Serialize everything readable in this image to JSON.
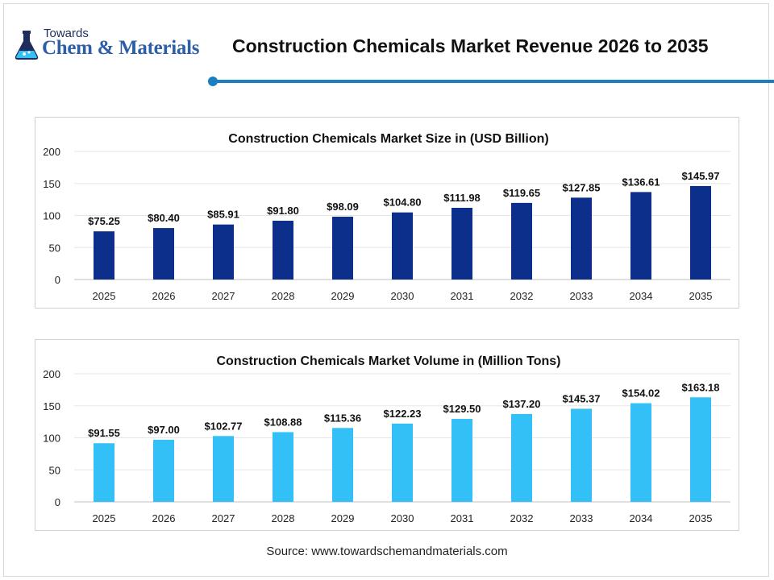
{
  "logo": {
    "top_text": "Towards",
    "brand_text": "Chem & Materials"
  },
  "page_title": "Construction Chemicals Market Revenue 2026 to 2035",
  "source": "Source: www.towardschemandmaterials.com",
  "colors": {
    "accent": "#1a7fc1",
    "bar_size": "#0b2f8a",
    "bar_volume": "#33c0f6"
  },
  "chart_data": [
    {
      "type": "bar",
      "title": "Construction Chemicals Market Size in (USD Billion)",
      "categories": [
        "2025",
        "2026",
        "2027",
        "2028",
        "2029",
        "2030",
        "2031",
        "2032",
        "2033",
        "2034",
        "2035"
      ],
      "values": [
        75.25,
        80.4,
        85.91,
        91.8,
        98.09,
        104.8,
        111.98,
        119.65,
        127.85,
        136.61,
        145.97
      ],
      "data_labels": [
        "$75.25",
        "$80.40",
        "$85.91",
        "$91.80",
        "$98.09",
        "$104.80",
        "$111.98",
        "$119.65",
        "$127.85",
        "$136.61",
        "$145.97"
      ],
      "ylim": [
        0,
        200
      ],
      "yticks": [
        "0",
        "50",
        "100",
        "150",
        "200"
      ],
      "grid": true,
      "color": "#0b2f8a"
    },
    {
      "type": "bar",
      "title": "Construction Chemicals Market Volume in (Million Tons)",
      "categories": [
        "2025",
        "2026",
        "2027",
        "2028",
        "2029",
        "2030",
        "2031",
        "2032",
        "2033",
        "2034",
        "2035"
      ],
      "values": [
        91.55,
        97.0,
        102.77,
        108.88,
        115.36,
        122.23,
        129.5,
        137.2,
        145.37,
        154.02,
        163.18
      ],
      "data_labels": [
        "$91.55",
        "$97.00",
        "$102.77",
        "$108.88",
        "$115.36",
        "$122.23",
        "$129.50",
        "$137.20",
        "$145.37",
        "$154.02",
        "$163.18"
      ],
      "ylim": [
        0,
        200
      ],
      "yticks": [
        "0",
        "50",
        "100",
        "150",
        "200"
      ],
      "grid": true,
      "color": "#33c0f6"
    }
  ]
}
